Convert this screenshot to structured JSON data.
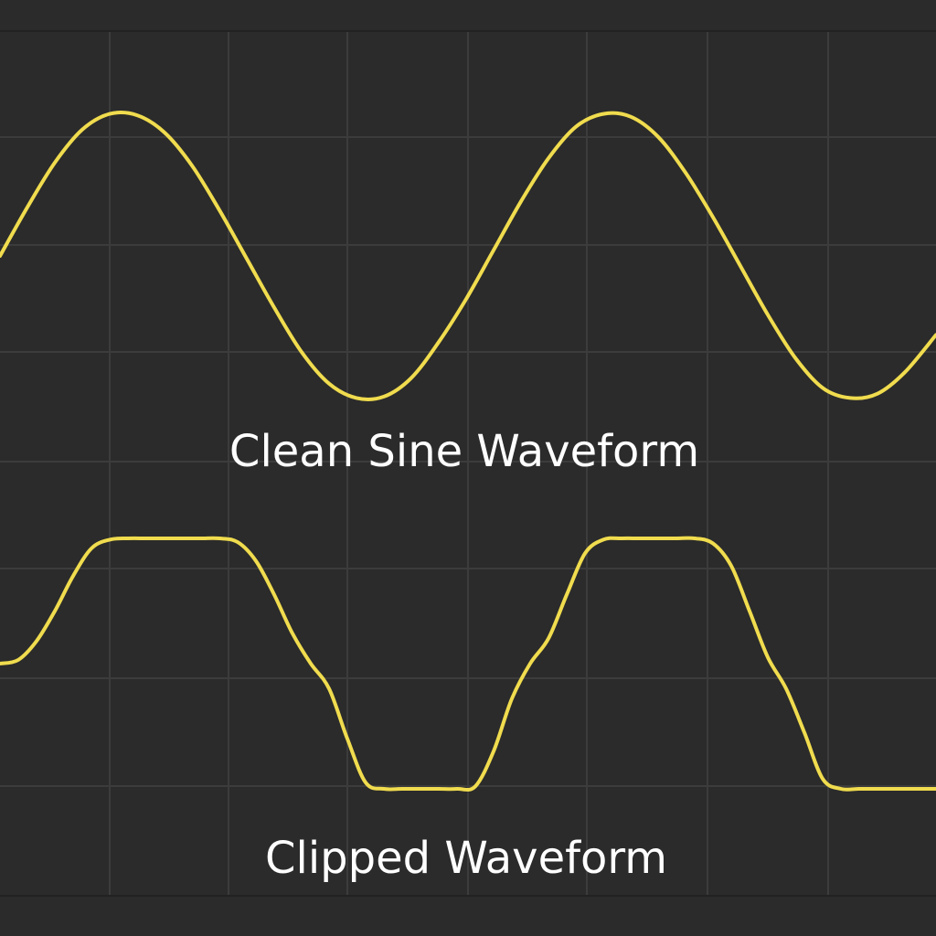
{
  "chart_data": {
    "type": "line",
    "grid": true,
    "colors": {
      "background": "#2b2b2b",
      "grid": "#3c3c3c",
      "wave": "#f0dc4e",
      "text": "#ffffff"
    },
    "panels": [
      {
        "id": "clean",
        "title": "Clean Sine Waveform",
        "series": [
          {
            "x": [
              0,
              30,
              60,
              90,
              120,
              150,
              180,
              210,
              240,
              270,
              300,
              330,
              360,
              390,
              420,
              450,
              480,
              510,
              540,
              570,
              600,
              630,
              660,
              690,
              720,
              750,
              780,
              810,
              840,
              870,
              900,
              930,
              960,
              990,
              1024
            ],
            "y": [
              0.0,
              0.34,
              0.65,
              0.88,
              0.99,
              0.98,
              0.86,
              0.63,
              0.32,
              -0.02,
              -0.36,
              -0.67,
              -0.89,
              -0.99,
              -0.98,
              -0.85,
              -0.6,
              -0.3,
              0.04,
              0.38,
              0.68,
              0.9,
              0.99,
              0.97,
              0.83,
              0.58,
              0.27,
              -0.07,
              -0.41,
              -0.71,
              -0.92,
              -0.99,
              -0.96,
              -0.81,
              -0.55
            ]
          }
        ]
      },
      {
        "id": "clipped",
        "title": "Clipped Waveform",
        "series": [
          {
            "x": [
              0,
              20,
              40,
              60,
              80,
              100,
              120,
              140,
              160,
              180,
              200,
              220,
              240,
              260,
              280,
              300,
              320,
              340,
              360,
              380,
              400,
              420,
              440,
              460,
              480,
              500,
              520,
              540,
              560,
              580,
              600,
              620,
              640,
              660,
              680,
              700,
              720,
              740,
              760,
              780,
              800,
              820,
              840,
              860,
              880,
              900,
              920,
              940,
              960,
              980,
              1000,
              1024
            ],
            "y": [
              0.0,
              0.03,
              0.18,
              0.42,
              0.7,
              0.92,
              0.99,
              1.0,
              1.0,
              1.0,
              1.0,
              1.0,
              1.0,
              0.97,
              0.82,
              0.55,
              0.24,
              0.0,
              -0.2,
              -0.6,
              -0.95,
              -1.0,
              -1.0,
              -1.0,
              -1.0,
              -1.0,
              -0.98,
              -0.7,
              -0.28,
              0.0,
              0.2,
              0.55,
              0.88,
              0.99,
              1.0,
              1.0,
              1.0,
              1.0,
              1.0,
              0.96,
              0.78,
              0.42,
              0.05,
              -0.2,
              -0.55,
              -0.92,
              -1.0,
              -1.0,
              -1.0,
              -1.0,
              -1.0,
              -1.0
            ]
          }
        ]
      }
    ]
  }
}
